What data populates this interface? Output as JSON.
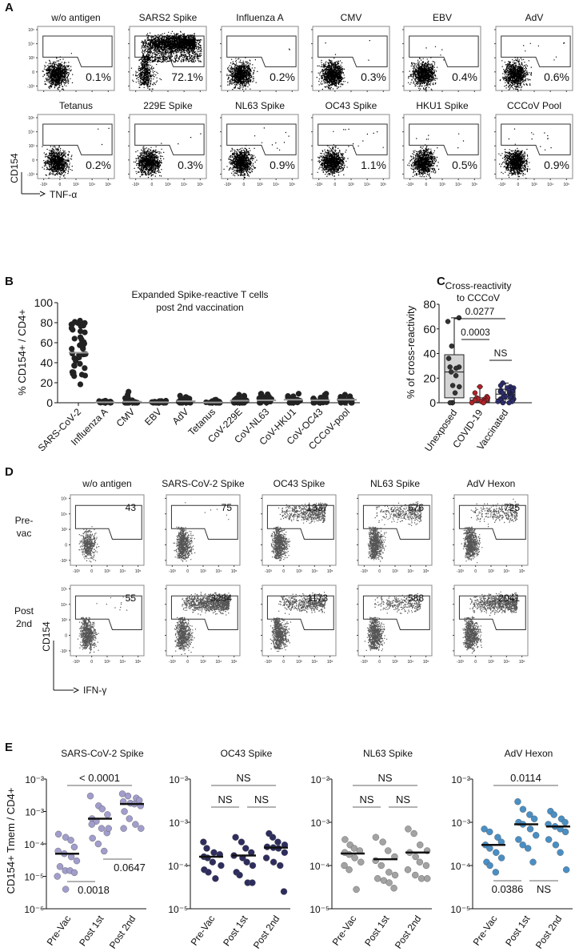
{
  "panels": {
    "A": "A",
    "B": "B",
    "C": "C",
    "D": "D",
    "E": "E"
  },
  "flow_A": {
    "y_label": "CD154",
    "x_label": "TNF-α",
    "y_ticks": [
      "10⁵",
      "10⁴",
      "10³",
      "0",
      "-10³"
    ],
    "x_ticks": [
      "-10³",
      "0",
      "10³",
      "10⁴",
      "10⁵"
    ],
    "rows": [
      [
        {
          "title": "w/o antigen",
          "percent": "0.1%",
          "value": 0.1
        },
        {
          "title": "SARS2 Spike",
          "percent": "72.1%",
          "value": 72.1
        },
        {
          "title": "Influenza A",
          "percent": "0.2%",
          "value": 0.2
        },
        {
          "title": "CMV",
          "percent": "0.3%",
          "value": 0.3
        },
        {
          "title": "EBV",
          "percent": "0.4%",
          "value": 0.4
        },
        {
          "title": "AdV",
          "percent": "0.6%",
          "value": 0.6
        }
      ],
      [
        {
          "title": "Tetanus",
          "percent": "0.2%",
          "value": 0.2
        },
        {
          "title": "229E Spike",
          "percent": "0.3%",
          "value": 0.3
        },
        {
          "title": "NL63 Spike",
          "percent": "0.9%",
          "value": 0.9
        },
        {
          "title": "OC43 Spike",
          "percent": "1.1%",
          "value": 1.1
        },
        {
          "title": "HKU1 Spike",
          "percent": "0.5%",
          "value": 0.5
        },
        {
          "title": "CCCoV Pool",
          "percent": "0.9%",
          "value": 0.9
        }
      ]
    ]
  },
  "flow_D": {
    "y_label": "CD154",
    "x_label": "IFN-γ",
    "titles": [
      "w/o antigen",
      "SARS-CoV-2 Spike",
      "OC43 Spike",
      "NL63 Spike",
      "AdV Hexon"
    ],
    "row_labels": [
      [
        "Pre-",
        "vac"
      ],
      [
        "Post",
        "2nd"
      ]
    ],
    "y_ticks": [
      "10⁵",
      "10⁴",
      "10³",
      "0",
      "-10³"
    ],
    "x_ticks": [
      "-10³",
      "0",
      "10³",
      "10⁴",
      "10⁵"
    ],
    "counts": [
      [
        "43",
        "75",
        "1337",
        "676",
        "725"
      ],
      [
        "55",
        "3284",
        "1173",
        "588",
        "2041"
      ]
    ]
  },
  "chart_data": [
    {
      "panel": "B",
      "type": "scatter",
      "title": [
        "Expanded Spike-reactive T cells",
        "post 2nd vaccination"
      ],
      "ylabel": "% CD154+ / CD4+",
      "ylim": [
        0,
        100
      ],
      "yticks": [
        "0",
        "20",
        "40",
        "60",
        "80",
        "100"
      ],
      "categories": [
        "SARS-CoV-2",
        "Influenza A",
        "CMV",
        "EBV",
        "AdV",
        "Tetanus",
        "CoV-229E",
        "CoV-NL63",
        "CoV-HKU1",
        "CoV-OC43",
        "CCCoV-pool"
      ],
      "median": [
        50,
        0.5,
        1,
        0.5,
        1.5,
        0.3,
        2,
        2.5,
        3,
        2.5,
        3
      ],
      "min": [
        18,
        0,
        0,
        0,
        0,
        0,
        0,
        0,
        0,
        0,
        0
      ],
      "max": [
        82,
        2,
        11,
        2,
        7,
        3,
        8,
        9,
        9,
        9,
        8
      ],
      "n": 45
    },
    {
      "panel": "C",
      "type": "box",
      "title": [
        "Cross-reactivity",
        "to CCCoV"
      ],
      "ylabel": "% of cross-reactivity",
      "ylim": [
        0,
        80
      ],
      "yticks": [
        "0",
        "20",
        "40",
        "60",
        "80"
      ],
      "categories": [
        "Unexposed",
        "COVID-19",
        "Vaccinated"
      ],
      "colors": [
        "#d4d4d4",
        "#b0232a",
        "#2c2c6e"
      ],
      "box": [
        {
          "min": 0,
          "q1": 4,
          "median": 25,
          "q3": 39,
          "max": 69
        },
        {
          "min": 0,
          "q1": 0.5,
          "median": 2,
          "q3": 4,
          "max": 13
        },
        {
          "min": 0,
          "q1": 3,
          "median": 7,
          "q3": 11,
          "max": 16
        }
      ],
      "points": [
        [
          69,
          66,
          46,
          36,
          29,
          29,
          28,
          25,
          22,
          14,
          13,
          8,
          0,
          0,
          0
        ],
        [
          13,
          8,
          5,
          4,
          4,
          3,
          3,
          2,
          2,
          2,
          1,
          1,
          0,
          0
        ],
        [
          16,
          14,
          13,
          12,
          12,
          11,
          10,
          10,
          9,
          9,
          8,
          8,
          7,
          7,
          6,
          6,
          5,
          5,
          4,
          4,
          3,
          3,
          2,
          2,
          1,
          1,
          0,
          0
        ]
      ],
      "brackets": [
        {
          "groups": [
            0,
            2
          ],
          "label": "0.0277"
        },
        {
          "groups": [
            0,
            1
          ],
          "label": "0.0003"
        },
        {
          "groups": [
            1,
            2
          ],
          "label": "NS"
        }
      ]
    },
    {
      "panel": "E",
      "type": "scatter",
      "ylabel": "CD154+ Tmem / CD4+",
      "yscale": "log",
      "categories": [
        "Pre-Vac",
        "Post 1st",
        "Post 2nd"
      ],
      "subplots": [
        {
          "title": "SARS-CoV-2 Spike",
          "ylim": [
            1e-06,
            0.01
          ],
          "yticks": [
            "10⁻⁶",
            "10⁻⁵",
            "10⁻⁴",
            "10⁻³",
            "10⁻²"
          ],
          "color": "#a19dcc",
          "medians": [
            5e-05,
            0.0006,
            0.0017
          ],
          "points": [
            [
              0.0002,
              0.00016,
              0.00013,
              8e-05,
              6e-05,
              5e-05,
              4e-05,
              3e-05,
              2e-05,
              1.5e-05,
              1.5e-05,
              1.3e-05,
              1e-05,
              4e-06
            ],
            [
              0.003,
              0.0015,
              0.0012,
              0.0008,
              0.0006,
              0.0005,
              0.0003,
              0.00022,
              0.00015,
              0.0001,
              6e-05,
              0.0003,
              0.0004
            ],
            [
              0.0035,
              0.003,
              0.0026,
              0.0022,
              0.002,
              0.0018,
              0.0017,
              0.0015,
              0.001,
              0.0006,
              0.0004,
              0.0003,
              0.0003
            ]
          ],
          "brackets": [
            {
              "groups": [
                0,
                2
              ],
              "label": "< 0.0001"
            },
            {
              "groups": [
                0,
                1
              ],
              "label": "0.0018"
            },
            {
              "groups": [
                1,
                2
              ],
              "label": "0.0647"
            }
          ]
        },
        {
          "title": "OC43 Spike",
          "ylim": [
            1e-05,
            0.01
          ],
          "yticks": [
            "10⁻⁵",
            "10⁻⁴",
            "10⁻³",
            "10⁻²"
          ],
          "color": "#2e2d5e",
          "medians": [
            0.00016,
            0.00017,
            0.00026
          ],
          "points": [
            [
              0.00035,
              0.00025,
              0.0002,
              0.00018,
              0.00016,
              0.00015,
              0.00012,
              0.0001,
              8e-05,
              7e-05,
              5e-05
            ],
            [
              0.00045,
              0.00035,
              0.00025,
              0.0002,
              0.00017,
              0.00015,
              0.00012,
              0.0001,
              7e-05,
              6e-05,
              4e-05,
              4e-05
            ],
            [
              0.00055,
              0.00045,
              0.00035,
              0.0003,
              0.00027,
              0.00026,
              0.00025,
              0.0002,
              0.00015,
              0.00012,
              0.0001,
              2.5e-05
            ]
          ],
          "brackets": [
            {
              "groups": [
                0,
                2
              ],
              "label": "NS"
            },
            {
              "groups": [
                0,
                1
              ],
              "label": "NS"
            },
            {
              "groups": [
                1,
                2
              ],
              "label": "NS"
            }
          ]
        },
        {
          "title": "NL63 Spike",
          "ylim": [
            1e-05,
            0.01
          ],
          "yticks": [
            "10⁻⁵",
            "10⁻⁴",
            "10⁻³",
            "10⁻²"
          ],
          "color": "#a3a3a3",
          "medians": [
            0.00019,
            0.00014,
            0.0002
          ],
          "points": [
            [
              0.0004,
              0.0003,
              0.00025,
              0.00022,
              0.0002,
              0.00018,
              0.00015,
              0.00012,
              0.0001,
              8e-05,
              2.8e-05
            ],
            [
              0.00045,
              0.00035,
              0.00022,
              0.00016,
              0.00013,
              0.0001,
              7e-05,
              6e-05,
              5e-05,
              4.5e-05,
              4e-05,
              3e-05
            ],
            [
              0.0007,
              0.00055,
              0.0003,
              0.00022,
              0.0002,
              0.00016,
              0.00012,
              0.0001,
              8e-05,
              6e-05,
              5e-05,
              5e-05
            ]
          ],
          "brackets": [
            {
              "groups": [
                0,
                2
              ],
              "label": "NS"
            },
            {
              "groups": [
                0,
                1
              ],
              "label": "NS"
            },
            {
              "groups": [
                1,
                2
              ],
              "label": "NS"
            }
          ]
        },
        {
          "title": "AdV Hexon",
          "ylim": [
            1e-05,
            0.01
          ],
          "yticks": [
            "10⁻⁵",
            "10⁻⁴",
            "10⁻³",
            "10⁻²"
          ],
          "color": "#4a8fc4",
          "medians": [
            0.0003,
            0.0009,
            0.0008
          ],
          "points": [
            [
              0.0007,
              0.0006,
              0.00045,
              0.00035,
              0.0003,
              0.00025,
              0.0002,
              0.00015,
              0.00012,
              0.0001,
              7e-05
            ],
            [
              0.003,
              0.002,
              0.0015,
              0.0012,
              0.001,
              0.0009,
              0.0007,
              0.0005,
              0.0004,
              0.0003,
              0.00025,
              0.00012
            ],
            [
              0.0018,
              0.0015,
              0.0012,
              0.001,
              0.0009,
              0.0008,
              0.0007,
              0.0006,
              0.0004,
              0.0003,
              0.0002,
              8e-05
            ]
          ],
          "brackets": [
            {
              "groups": [
                0,
                2
              ],
              "label": "0.0114"
            },
            {
              "groups": [
                0,
                1
              ],
              "label": "0.0386"
            },
            {
              "groups": [
                1,
                2
              ],
              "label": "NS"
            }
          ]
        }
      ]
    }
  ]
}
